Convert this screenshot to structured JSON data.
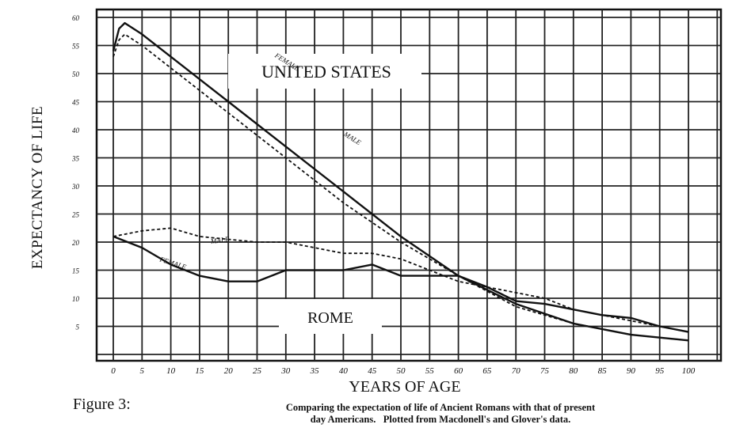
{
  "chart_data": {
    "type": "line",
    "title": "",
    "xlabel": "YEARS OF AGE",
    "ylabel": "EXPECTANCY OF LIFE",
    "xlim": [
      0,
      100
    ],
    "ylim": [
      0,
      60
    ],
    "grid": true,
    "x_ticks": [
      "0",
      "5",
      "10",
      "15",
      "20",
      "25",
      "30",
      "35",
      "40",
      "45",
      "50",
      "55",
      "60",
      "65",
      "70",
      "75",
      "80",
      "85",
      "90",
      "95",
      "100"
    ],
    "y_ticks": [
      "5",
      "10",
      "15",
      "20",
      "25",
      "30",
      "35",
      "40",
      "45",
      "50",
      "55",
      "60"
    ],
    "annotations": [
      "UNITED STATES",
      "ROME"
    ],
    "series": [
      {
        "name": "FEMALE",
        "group": "UNITED STATES",
        "style": "solid",
        "x": [
          0,
          1,
          2,
          5,
          10,
          20,
          30,
          40,
          50,
          60,
          70,
          80,
          90,
          95,
          100
        ],
        "y": [
          54,
          58,
          59,
          57,
          53,
          45,
          37,
          29,
          21,
          14,
          9,
          5.5,
          3.5,
          3,
          2.5
        ]
      },
      {
        "name": "MALE",
        "group": "UNITED STATES",
        "style": "dashed",
        "x": [
          0,
          1,
          2,
          5,
          10,
          20,
          30,
          40,
          50,
          60,
          70,
          80,
          90,
          95,
          100
        ],
        "y": [
          53,
          56,
          57,
          55,
          51,
          43,
          35,
          27,
          20,
          14,
          8.5,
          5.5,
          3.5,
          3,
          2.5
        ]
      },
      {
        "name": "MALE",
        "group": "ROME",
        "style": "dashed",
        "x": [
          0,
          5,
          10,
          15,
          20,
          25,
          30,
          35,
          40,
          45,
          50,
          55,
          60,
          65,
          70,
          75,
          80,
          85,
          90,
          95,
          100
        ],
        "y": [
          21,
          22,
          22.5,
          21,
          20.5,
          20,
          20,
          19,
          18,
          18,
          17,
          15,
          13,
          12,
          11,
          10,
          8,
          7,
          6,
          5,
          4
        ]
      },
      {
        "name": "FEMALE",
        "group": "ROME",
        "style": "solid",
        "x": [
          0,
          5,
          10,
          15,
          20,
          25,
          30,
          35,
          40,
          45,
          50,
          55,
          60,
          65,
          70,
          75,
          80,
          85,
          90,
          95,
          100
        ],
        "y": [
          21,
          19,
          16,
          14,
          13,
          13,
          15,
          15,
          15,
          16,
          14,
          14,
          14,
          12,
          9.5,
          9,
          8,
          7,
          6.5,
          5,
          4
        ]
      }
    ]
  }
}
